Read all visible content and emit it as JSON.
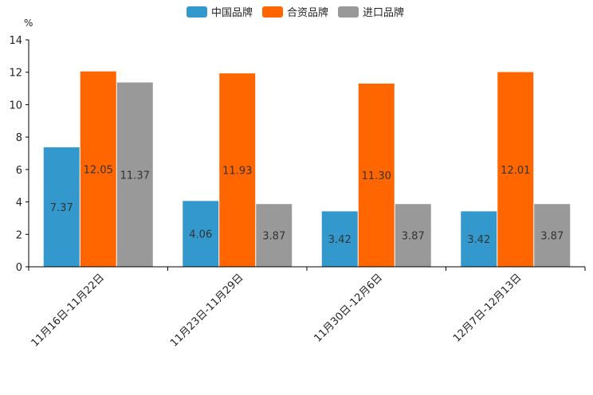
{
  "chart_data": {
    "type": "bar",
    "title": "",
    "xlabel": "",
    "ylabel": "%",
    "ylim": [
      0,
      14
    ],
    "yticks": [
      0,
      2,
      4,
      6,
      8,
      10,
      12,
      14
    ],
    "grid": false,
    "legend_position": "top-center",
    "categories": [
      "11月16日-11月22日",
      "11月23日-11月29日",
      "11月30日-12月6日",
      "12月7日-12月13日"
    ],
    "series": [
      {
        "name": "中国品牌",
        "color": "#3399CC",
        "values": [
          7.37,
          4.06,
          3.42,
          3.42
        ],
        "labels": [
          "7.37",
          "4.06",
          "3.42",
          "3.42"
        ]
      },
      {
        "name": "合资品牌",
        "color": "#FF6600",
        "values": [
          12.05,
          11.93,
          11.3,
          12.01
        ],
        "labels": [
          "12.05",
          "11.93",
          "11.30",
          "12.01"
        ]
      },
      {
        "name": "进口品牌",
        "color": "#999999",
        "values": [
          11.37,
          3.87,
          3.87,
          3.87
        ],
        "labels": [
          "11.37",
          "3.87",
          "3.87",
          "3.87"
        ]
      }
    ]
  }
}
